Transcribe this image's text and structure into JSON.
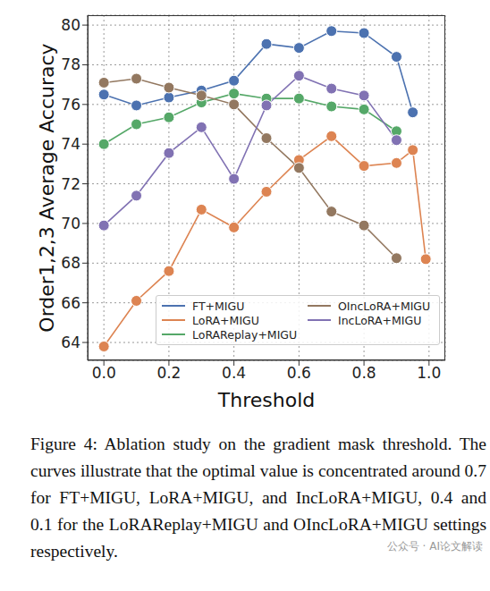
{
  "chart_data": {
    "type": "line",
    "x_label": "Threshold",
    "y_label": "Order1,2,3 Average Accuracy",
    "xlim": [
      -0.05,
      1.05
    ],
    "xticks": [
      {
        "value": 0,
        "label": "0.0"
      },
      {
        "value": 0.2,
        "label": "0.2"
      },
      {
        "value": 0.4,
        "label": "0.4"
      },
      {
        "value": 0.6,
        "label": "0.6"
      },
      {
        "value": 0.8,
        "label": "0.8"
      },
      {
        "value": 1,
        "label": "1.0"
      }
    ],
    "ylim": [
      63.1,
      80.5
    ],
    "yticks": [
      64,
      66,
      68,
      70,
      72,
      74,
      76,
      78,
      80
    ],
    "grid": true,
    "legend": "lower center",
    "series": [
      {
        "name": "FT+MIGU",
        "color": "#4c72b0",
        "marker": "o",
        "x": [
          0,
          0.1,
          0.2,
          0.3,
          0.4,
          0.5,
          0.6,
          0.7,
          0.8,
          0.9,
          0.95
        ],
        "values": [
          76.5,
          75.95,
          76.35,
          76.7,
          77.2,
          79.05,
          78.85,
          79.7,
          79.6,
          78.4,
          75.6
        ]
      },
      {
        "name": "LoRA+MIGU",
        "color": "#dd8452",
        "marker": "o",
        "x": [
          0,
          0.1,
          0.2,
          0.3,
          0.4,
          0.5,
          0.6,
          0.7,
          0.8,
          0.9,
          0.95,
          0.99
        ],
        "values": [
          63.8,
          66.1,
          67.6,
          70.7,
          69.8,
          71.6,
          73.2,
          74.4,
          72.9,
          73.05,
          73.7,
          68.2
        ]
      },
      {
        "name": "LoRAReplay+MIGU",
        "color": "#55a868",
        "marker": "o",
        "x": [
          0,
          0.1,
          0.2,
          0.3,
          0.4,
          0.5,
          0.6,
          0.7,
          0.8,
          0.9
        ],
        "values": [
          74.0,
          75.0,
          75.35,
          76.1,
          76.55,
          76.3,
          76.3,
          75.9,
          75.75,
          74.65
        ]
      },
      {
        "name": "OIncLoRA+MIGU",
        "color": "#937860",
        "marker": "o",
        "x": [
          0,
          0.1,
          0.2,
          0.3,
          0.4,
          0.5,
          0.6,
          0.7,
          0.8,
          0.9
        ],
        "values": [
          77.1,
          77.3,
          76.85,
          76.45,
          76.0,
          74.3,
          72.8,
          70.6,
          69.9,
          68.25
        ]
      },
      {
        "name": "IncLoRA+MIGU",
        "color": "#8172b3",
        "marker": "o",
        "x": [
          0,
          0.1,
          0.2,
          0.3,
          0.4,
          0.5,
          0.6,
          0.7,
          0.8,
          0.9
        ],
        "values": [
          69.9,
          71.4,
          73.55,
          74.85,
          72.25,
          75.95,
          77.45,
          76.8,
          76.45,
          74.2
        ]
      }
    ],
    "caption": "Figure 4: Ablation study on the gradient mask threshold. The curves illustrate that the optimal value is concentrated around 0.7 for FT+MIGU, LoRA+MIGU, and IncLoRA+MIGU, 0.4 and 0.1 for the LoRAReplay+MIGU and OIncLoRA+MIGU settings respectively.",
    "annotations": [
      "公众号 · AI论文解读"
    ]
  }
}
